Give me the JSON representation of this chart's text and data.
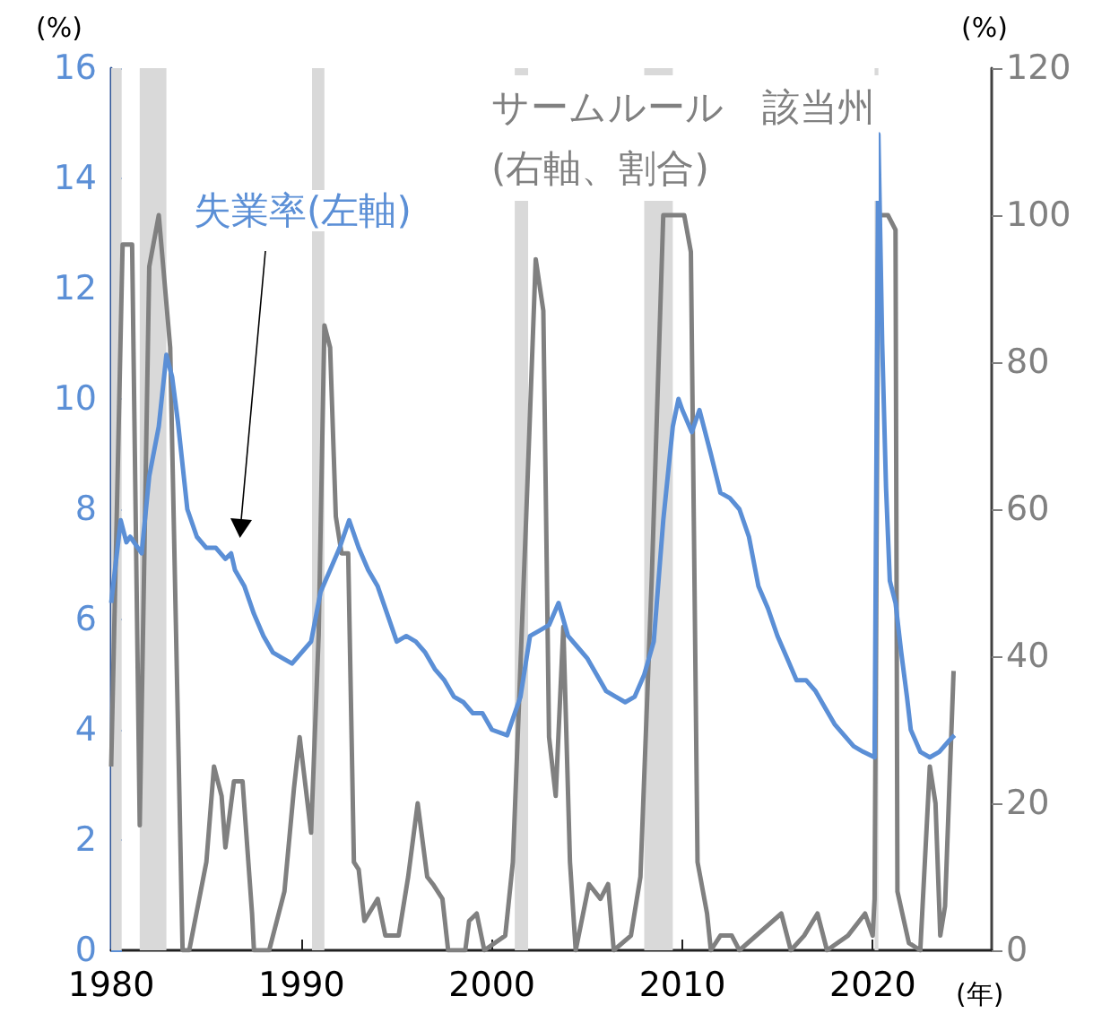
{
  "chart_data": {
    "type": "line",
    "xlabel": "(年)",
    "ylabel": "(%)",
    "y2label": "(%)",
    "xlim": [
      1980,
      2026.25
    ],
    "xticks": [
      1980,
      1990,
      2000,
      2010,
      2020
    ],
    "ylim": [
      0,
      16
    ],
    "yticks": [
      0,
      2,
      4,
      6,
      8,
      10,
      12,
      14,
      16
    ],
    "y2lim": [
      0,
      120
    ],
    "y2ticks": [
      0,
      20,
      40,
      60,
      80,
      100,
      120
    ],
    "series": [
      {
        "name": "失業率(左軸)",
        "color": "#5b8fd6",
        "x": [
          1980.0,
          1980.2,
          1980.5,
          1980.8,
          1981.0,
          1981.6,
          1982.0,
          1982.5,
          1982.9,
          1983.2,
          1983.5,
          1984.0,
          1984.5,
          1985.0,
          1985.5,
          1986.0,
          1986.3,
          1986.5,
          1987.0,
          1987.5,
          1988.0,
          1988.5,
          1989.0,
          1989.5,
          1990.0,
          1990.5,
          1991.0,
          1991.5,
          1992.0,
          1992.5,
          1993.0,
          1993.5,
          1994.0,
          1994.5,
          1995.0,
          1995.5,
          1996.0,
          1996.5,
          1997.0,
          1997.5,
          1998.0,
          1998.5,
          1999.0,
          1999.5,
          2000.0,
          2000.8,
          2001.5,
          2002.0,
          2002.5,
          2003.0,
          2003.5,
          2004.0,
          2004.5,
          2005.0,
          2005.5,
          2006.0,
          2006.5,
          2007.0,
          2007.5,
          2008.0,
          2008.5,
          2009.0,
          2009.5,
          2009.8,
          2010.0,
          2010.5,
          2010.9,
          2011.5,
          2012.0,
          2012.5,
          2013.0,
          2013.5,
          2014.0,
          2014.5,
          2015.0,
          2015.5,
          2016.0,
          2016.5,
          2017.0,
          2017.5,
          2018.0,
          2018.5,
          2019.0,
          2019.5,
          2020.1,
          2020.3,
          2020.5,
          2020.7,
          2020.9,
          2021.2,
          2021.5,
          2021.8,
          2022.0,
          2022.5,
          2023.0,
          2023.5,
          2024.0,
          2024.3
        ],
        "values": [
          6.3,
          6.9,
          7.8,
          7.4,
          7.5,
          7.2,
          8.6,
          9.5,
          10.8,
          10.4,
          9.6,
          8.0,
          7.5,
          7.3,
          7.3,
          7.1,
          7.2,
          6.9,
          6.6,
          6.1,
          5.7,
          5.4,
          5.3,
          5.2,
          5.4,
          5.6,
          6.5,
          6.9,
          7.3,
          7.8,
          7.3,
          6.9,
          6.6,
          6.1,
          5.6,
          5.7,
          5.6,
          5.4,
          5.1,
          4.9,
          4.6,
          4.5,
          4.3,
          4.3,
          4.0,
          3.9,
          4.6,
          5.7,
          5.8,
          5.9,
          6.3,
          5.7,
          5.5,
          5.3,
          5.0,
          4.7,
          4.6,
          4.5,
          4.6,
          5.0,
          5.6,
          7.8,
          9.5,
          10.0,
          9.8,
          9.4,
          9.8,
          9.0,
          8.3,
          8.2,
          8.0,
          7.5,
          6.6,
          6.2,
          5.7,
          5.3,
          4.9,
          4.9,
          4.7,
          4.4,
          4.1,
          3.9,
          3.7,
          3.6,
          3.5,
          14.8,
          11.0,
          8.4,
          6.7,
          6.3,
          5.4,
          4.6,
          4.0,
          3.6,
          3.5,
          3.6,
          3.8,
          3.9
        ]
      },
      {
        "name": "サームルール　該当州\n(右軸、割合)",
        "color": "#808080",
        "axis": "y2",
        "x": [
          1980.0,
          1980.3,
          1980.6,
          1981.1,
          1981.5,
          1982.0,
          1982.5,
          1983.1,
          1983.75,
          1984.1,
          1985.0,
          1985.4,
          1985.8,
          1986.0,
          1986.45,
          1986.9,
          1987.4,
          1987.5,
          1988.3,
          1988.6,
          1989.1,
          1989.6,
          1989.9,
          1990.5,
          1990.9,
          1991.2,
          1991.5,
          1991.8,
          1992.1,
          1992.45,
          1992.75,
          1993.0,
          1993.3,
          1994.0,
          1994.4,
          1995.1,
          1995.6,
          1996.1,
          1996.6,
          1996.9,
          1997.4,
          1997.7,
          1998.6,
          1998.8,
          1999.2,
          1999.6,
          2000.7,
          2001.1,
          2001.8,
          2002.3,
          2002.7,
          2003.0,
          2003.35,
          2003.75,
          2004.1,
          2004.4,
          2005.1,
          2005.7,
          2006.1,
          2006.4,
          2007.3,
          2007.8,
          2008.4,
          2009.0,
          2010.1,
          2010.45,
          2010.8,
          2011.3,
          2011.5,
          2012.0,
          2012.6,
          2013.0,
          2015.2,
          2015.7,
          2016.4,
          2017.1,
          2017.6,
          2018.7,
          2019.6,
          2020.0,
          2020.1,
          2020.3,
          2020.8,
          2021.2,
          2021.3,
          2021.9,
          2022.5,
          2023.0,
          2023.3,
          2023.55,
          2023.8,
          2024.25
        ],
        "values": [
          25,
          60,
          96,
          96,
          17,
          93,
          100,
          82,
          0,
          0,
          12,
          25,
          21,
          14,
          23,
          23,
          5,
          0,
          0,
          3,
          8,
          22,
          29,
          16,
          43,
          85,
          82,
          59,
          54,
          54,
          12,
          11,
          4,
          7,
          2,
          2,
          10,
          20,
          10,
          9,
          7,
          0,
          0,
          4,
          5,
          0,
          2,
          12,
          59,
          94,
          87,
          29,
          21,
          44,
          12,
          0,
          9,
          7,
          9,
          0,
          2,
          10,
          51,
          100,
          100,
          95,
          12,
          5,
          0,
          2,
          2,
          0,
          5,
          0,
          2,
          5,
          0,
          2,
          5,
          2,
          7,
          100,
          100,
          98,
          8,
          1,
          0,
          25,
          20,
          2,
          6,
          38
        ]
      }
    ],
    "bands": [
      {
        "axis": "x",
        "from": 1980.0,
        "to": 1980.55,
        "color": "#d9d9d9"
      },
      {
        "axis": "x",
        "from": 1981.5,
        "to": 1982.9,
        "color": "#d9d9d9"
      },
      {
        "axis": "x",
        "from": 1990.55,
        "to": 1991.2,
        "color": "#d9d9d9"
      },
      {
        "axis": "x",
        "from": 2001.2,
        "to": 2001.9,
        "color": "#d9d9d9"
      },
      {
        "axis": "x",
        "from": 2008.0,
        "to": 2009.5,
        "color": "#d9d9d9"
      },
      {
        "axis": "x",
        "from": 2020.1,
        "to": 2020.3,
        "color": "#d9d9d9"
      }
    ]
  }
}
